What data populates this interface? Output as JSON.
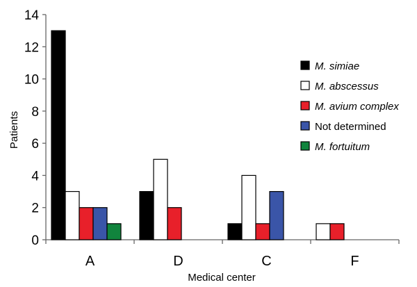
{
  "chart_data": {
    "type": "bar",
    "categories": [
      "A",
      "D",
      "C",
      "F"
    ],
    "series": [
      {
        "name": "M. simiae",
        "values": [
          13,
          3,
          1,
          0
        ],
        "color": "#000000",
        "italic": true
      },
      {
        "name": "M. abscessus",
        "values": [
          3,
          5,
          4,
          1
        ],
        "color": "#ffffff",
        "italic": true
      },
      {
        "name": "M. avium complex",
        "values": [
          2,
          2,
          1,
          1
        ],
        "color": "#e8202a",
        "italic": true
      },
      {
        "name": "Not determined",
        "values": [
          2,
          0,
          3,
          0
        ],
        "color": "#3a55a8",
        "italic": false
      },
      {
        "name": "M. fortuitum",
        "values": [
          1,
          0,
          0,
          0
        ],
        "color": "#11843d",
        "italic": true
      }
    ],
    "xlabel": "Medical center",
    "ylabel": "Patients",
    "ylim": [
      0,
      14
    ],
    "yticks": [
      0,
      2,
      4,
      6,
      8,
      10,
      12,
      14
    ],
    "grid": false,
    "legend": "right"
  }
}
